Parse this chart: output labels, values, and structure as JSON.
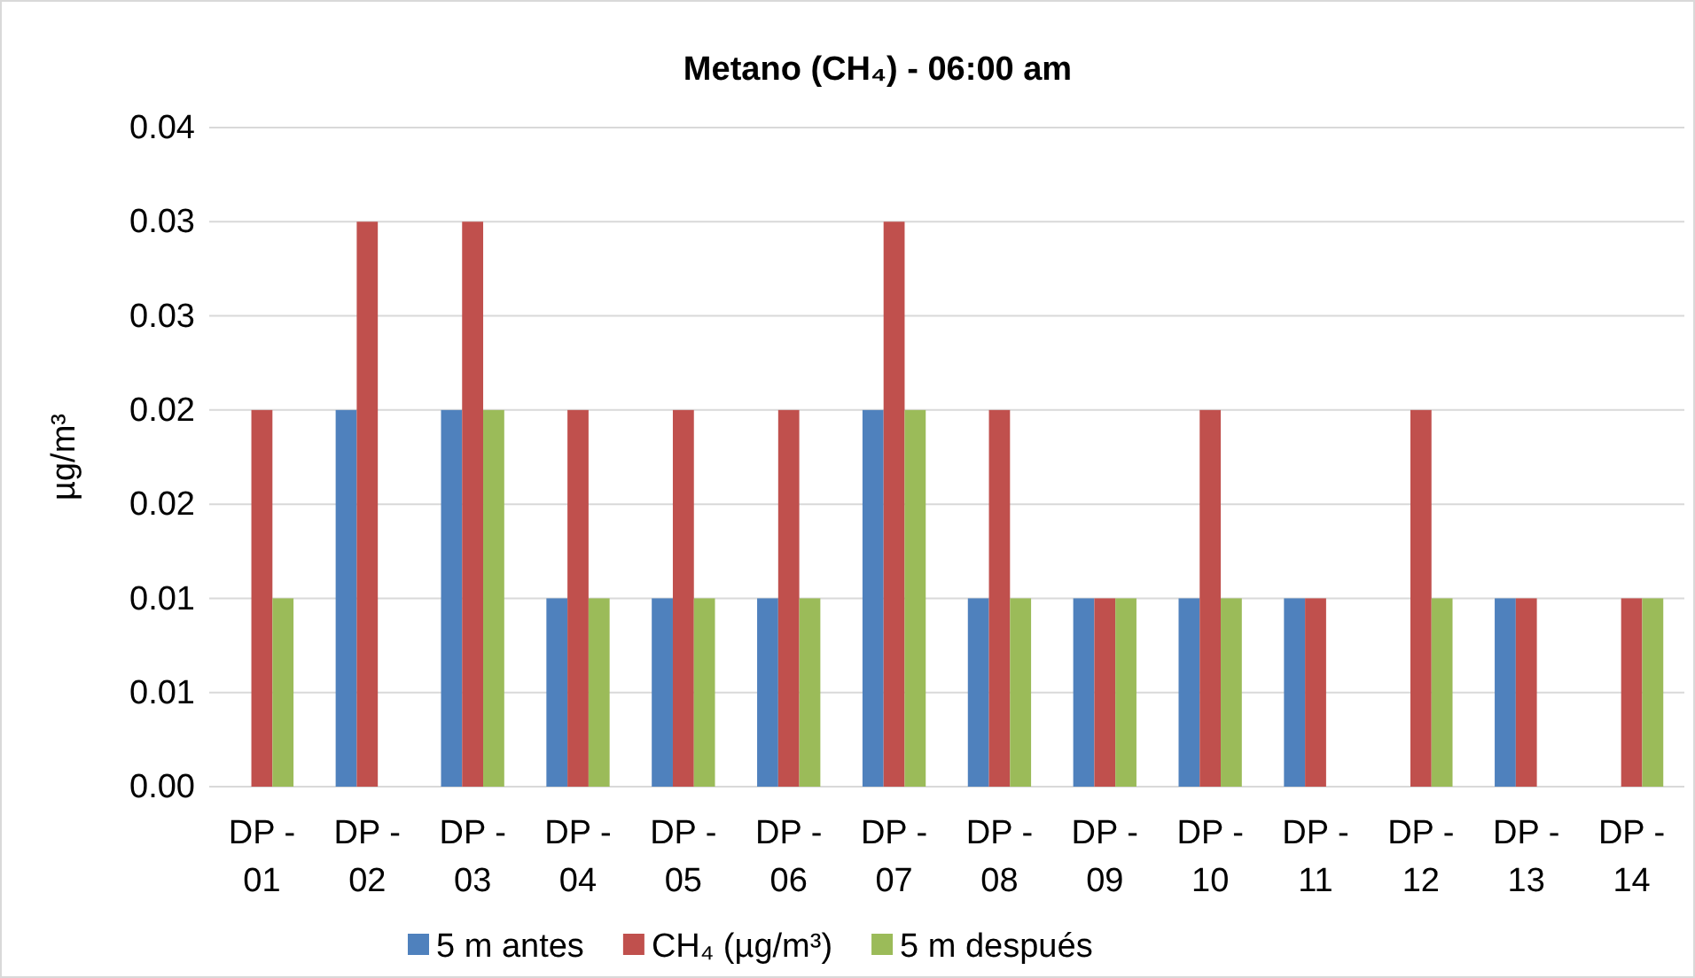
{
  "chart_data": {
    "type": "bar",
    "title": "Metano (CH₄) - 06:00 am",
    "ylabel": "µg/m³",
    "categories": [
      "DP - 01",
      "DP - 02",
      "DP - 03",
      "DP - 04",
      "DP - 05",
      "DP - 06",
      "DP - 07",
      "DP - 08",
      "DP - 09",
      "DP - 10",
      "DP - 11",
      "DP - 12",
      "DP - 13",
      "DP - 14"
    ],
    "series": [
      {
        "name": "5 m antes",
        "color": "#4f81bd",
        "values": [
          null,
          0.02,
          0.02,
          0.01,
          0.01,
          0.01,
          0.02,
          0.01,
          0.01,
          0.01,
          0.01,
          null,
          0.01,
          null
        ]
      },
      {
        "name": "CH₄ (µg/m³)",
        "color": "#c0504d",
        "values": [
          0.02,
          0.03,
          0.03,
          0.02,
          0.02,
          0.02,
          0.03,
          0.02,
          0.01,
          0.02,
          0.01,
          0.02,
          0.01,
          0.01
        ]
      },
      {
        "name": "5 m después",
        "color": "#9bbb59",
        "values": [
          0.01,
          null,
          0.02,
          0.01,
          0.01,
          0.01,
          0.02,
          0.01,
          0.01,
          0.01,
          null,
          0.01,
          null,
          0.01
        ]
      }
    ],
    "ylim": [
      0,
      0.035
    ],
    "yticks": [
      {
        "value": 0,
        "label": "0.00"
      },
      {
        "value": 0.005,
        "label": "0.01"
      },
      {
        "value": 0.01,
        "label": "0.01"
      },
      {
        "value": 0.015,
        "label": "0.02"
      },
      {
        "value": 0.02,
        "label": "0.02"
      },
      {
        "value": 0.025,
        "label": "0.03"
      },
      {
        "value": 0.03,
        "label": "0.03"
      },
      {
        "value": 0.035,
        "label": "0.04"
      }
    ],
    "grid": "y",
    "legend": "bottom"
  }
}
